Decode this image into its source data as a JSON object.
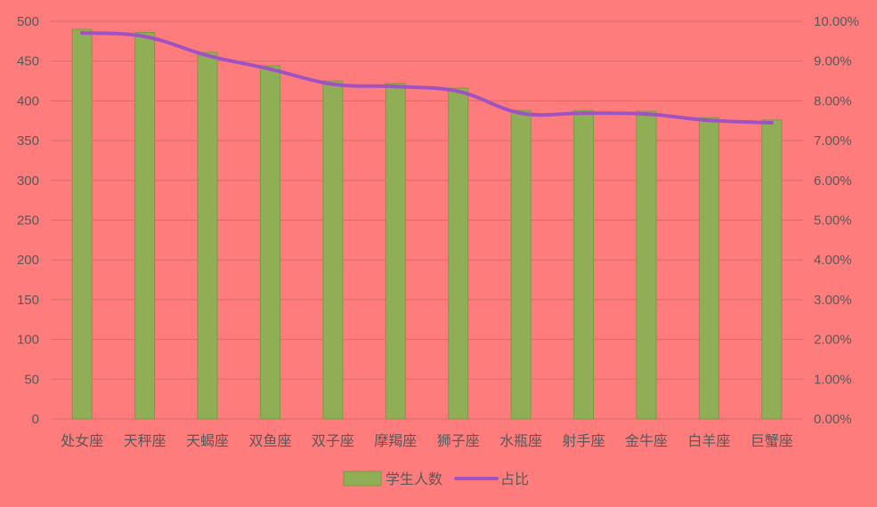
{
  "chart_data": {
    "type": "bar",
    "categories": [
      "处女座",
      "天秤座",
      "天蝎座",
      "双鱼座",
      "双子座",
      "摩羯座",
      "狮子座",
      "水瓶座",
      "射手座",
      "金牛座",
      "白羊座",
      "巨蟹座"
    ],
    "series": [
      {
        "name": "学生人数",
        "type": "bar",
        "axis": "left",
        "values": [
          490,
          486,
          461,
          444,
          425,
          422,
          416,
          388,
          388,
          387,
          379,
          376
        ]
      },
      {
        "name": "占比",
        "type": "line",
        "axis": "right",
        "values": [
          0.0971,
          0.0962,
          0.0914,
          0.088,
          0.0842,
          0.0836,
          0.0824,
          0.0769,
          0.0769,
          0.0767,
          0.0751,
          0.0745
        ]
      }
    ],
    "y_left": {
      "ylim": [
        0,
        500
      ],
      "ticks": [
        "0",
        "50",
        "100",
        "150",
        "200",
        "250",
        "300",
        "350",
        "400",
        "450",
        "500"
      ]
    },
    "y_right": {
      "ylim": [
        0,
        0.1
      ],
      "ticks": [
        "0.00%",
        "1.00%",
        "2.00%",
        "3.00%",
        "4.00%",
        "5.00%",
        "6.00%",
        "7.00%",
        "8.00%",
        "9.00%",
        "10.00%"
      ]
    },
    "grid": true,
    "legend_position": "bottom",
    "colors": {
      "background": "#ff7c7c",
      "bar": "#8fae55",
      "bar_border": "#7c9a44",
      "line": "#a052c2",
      "gridline": "#d96a6a",
      "text": "#595959"
    }
  }
}
